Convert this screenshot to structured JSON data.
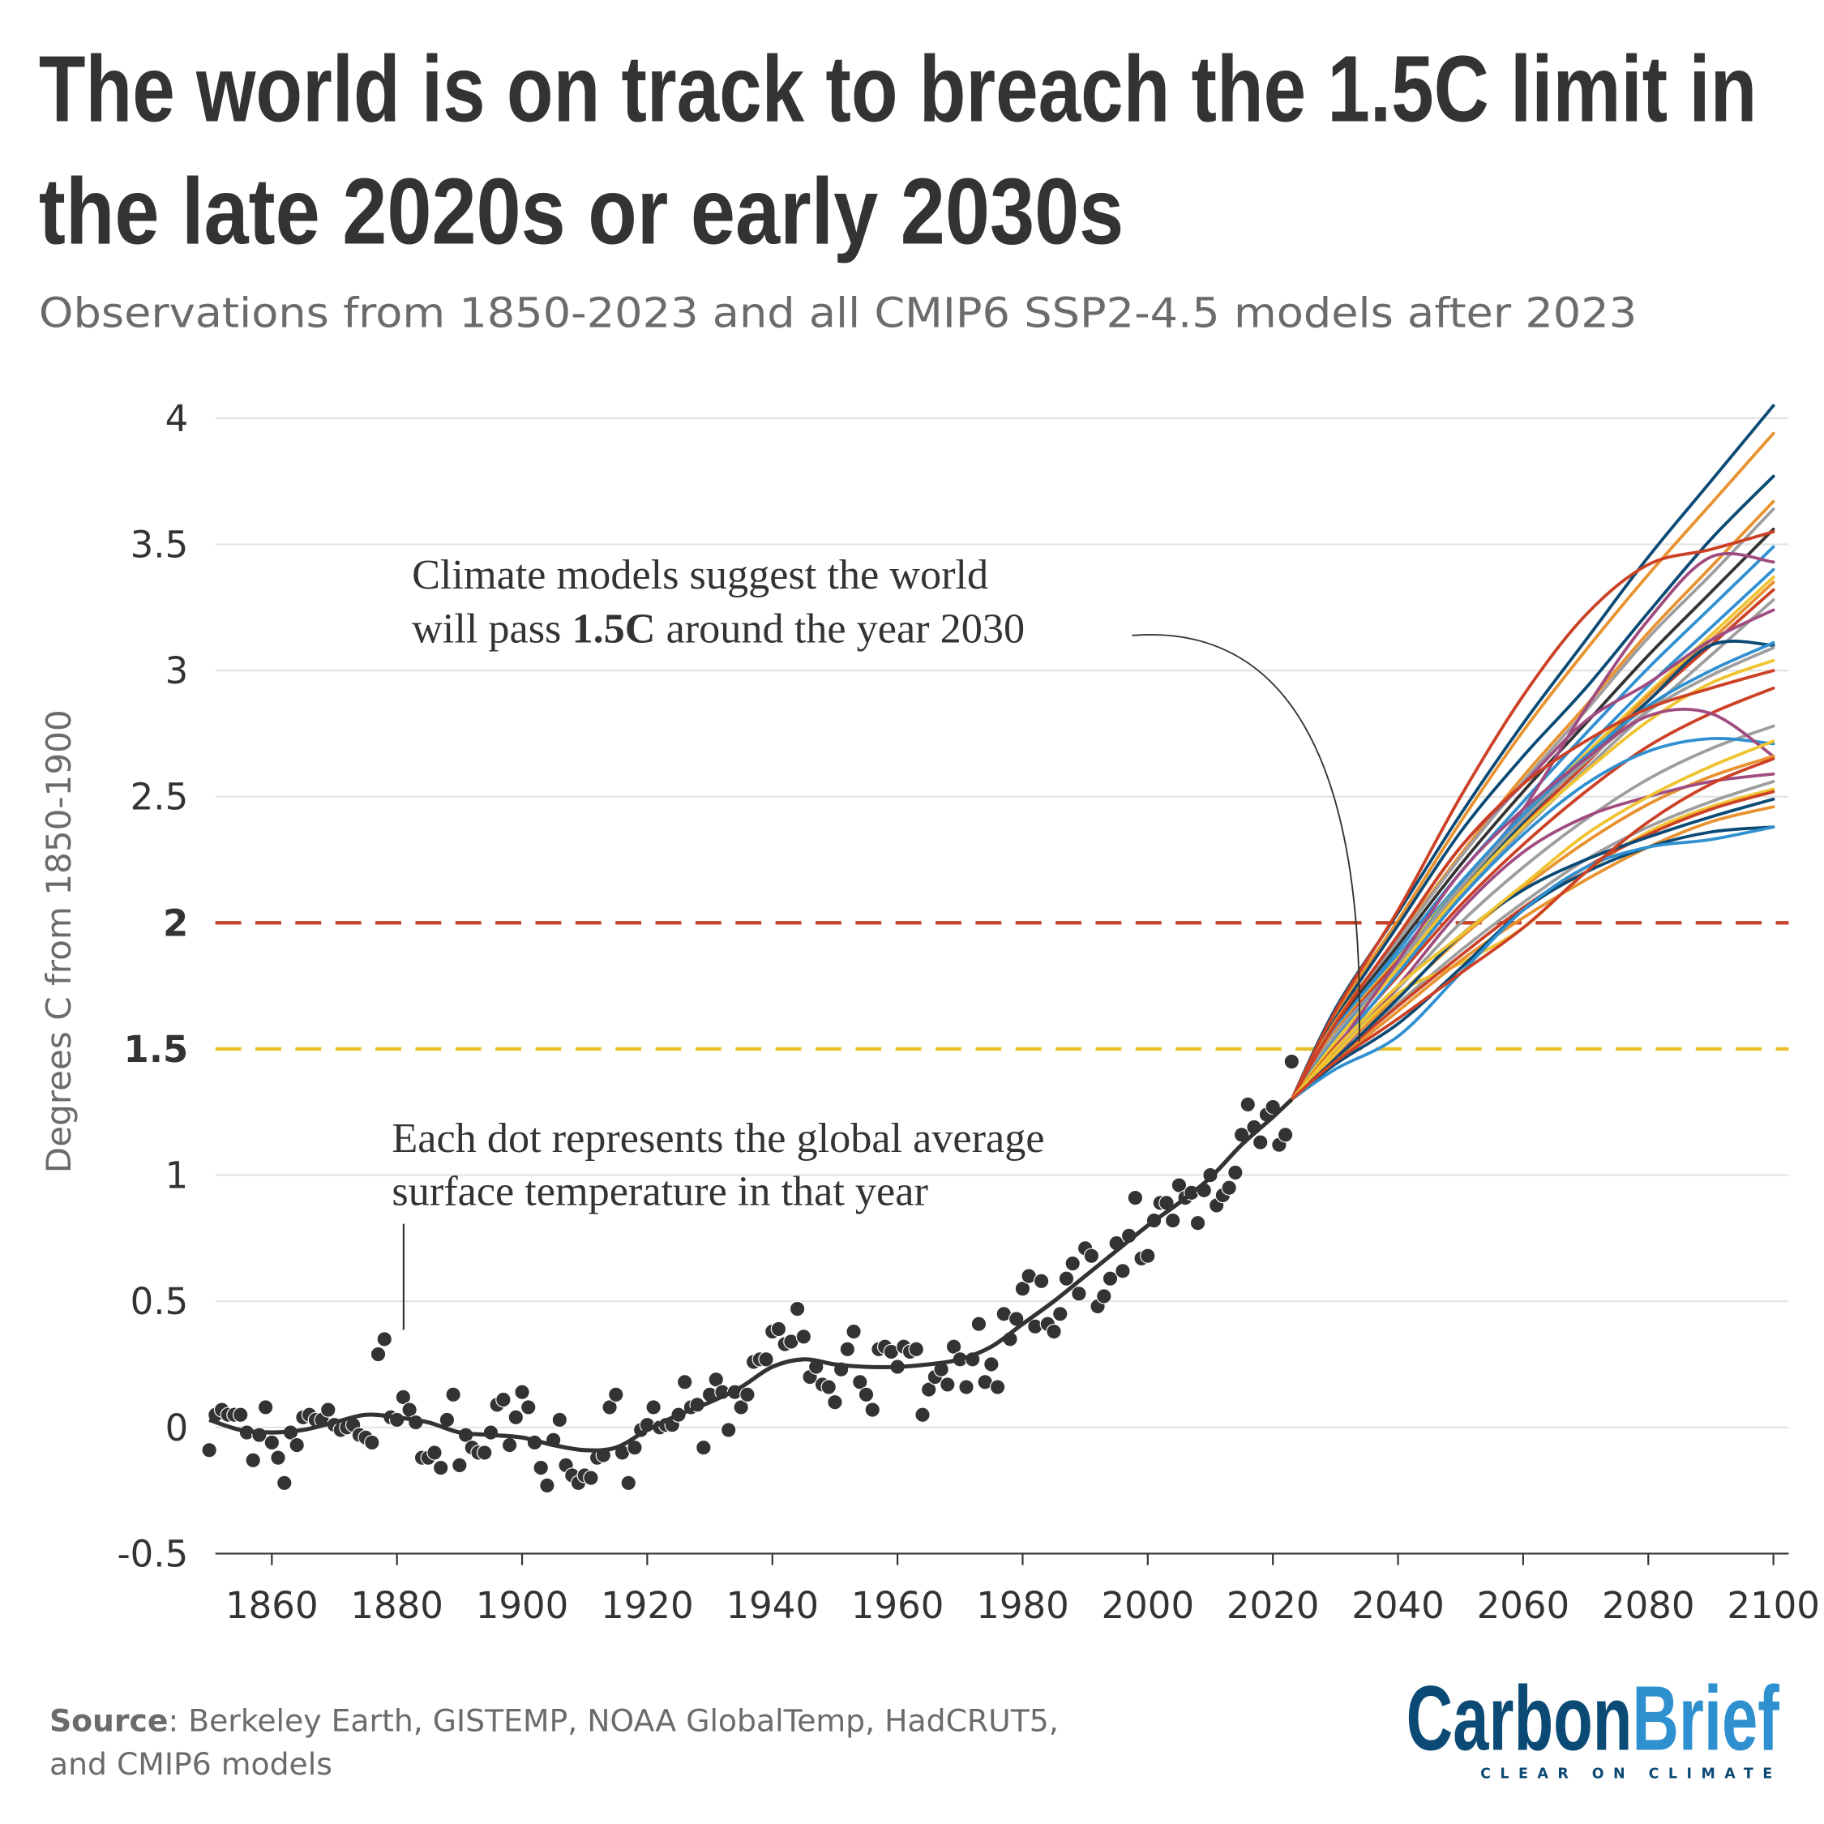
{
  "title": {
    "line1": "The world is on track to breach the 1.5C limit in",
    "line2": "the late 2020s or early 2030s"
  },
  "subtitle": "Observations from 1850-2023 and all CMIP6 SSP2-4.5 models after 2023",
  "annotations": {
    "models_line1": "Climate models suggest the world",
    "models_line2_pre": "will pass ",
    "models_line2_bold": "1.5C",
    "models_line2_post": " around the year 2030",
    "dots_line1": "Each dot represents the global average",
    "dots_line2": "surface temperature in that year"
  },
  "source": {
    "label": "Source",
    "text1": ": Berkeley Earth, GISTEMP, NOAA GlobalTemp, HadCRUT5,",
    "text2": "and CMIP6 models"
  },
  "logo": {
    "carbon": "Carbon",
    "brief": "Brief",
    "tagline": "CLEAR ON CLIMATE"
  },
  "colors": {
    "text": "#333333",
    "muted": "#6b6b6b",
    "limit_2c": "#c8432a",
    "limit_1_5c": "#e9c02b",
    "logo_dark": "#0b4a75",
    "logo_light": "#2f90d0"
  },
  "chart_data": {
    "type": "line",
    "title": "The world is on track to breach the 1.5C limit in the late 2020s or early 2030s",
    "ylabel": "Degrees C from 1850-1900",
    "xlabel": "",
    "xlim": [
      1850,
      2100
    ],
    "ylim": [
      -0.5,
      4
    ],
    "grid": true,
    "x_ticks": [
      1860,
      1880,
      1900,
      1920,
      1940,
      1960,
      1980,
      2000,
      2020,
      2040,
      2060,
      2080,
      2100
    ],
    "y_ticks": [
      {
        "value": 4,
        "label": "4",
        "bold": false
      },
      {
        "value": 3.5,
        "label": "3.5",
        "bold": false
      },
      {
        "value": 3,
        "label": "3",
        "bold": false
      },
      {
        "value": 2.5,
        "label": "2.5",
        "bold": false
      },
      {
        "value": 2,
        "label": "2",
        "bold": true
      },
      {
        "value": 1.5,
        "label": "1.5",
        "bold": true
      },
      {
        "value": 1,
        "label": "1",
        "bold": false
      },
      {
        "value": 0.5,
        "label": "0.5",
        "bold": false
      },
      {
        "value": 0,
        "label": "0",
        "bold": false
      },
      {
        "value": -0.5,
        "label": "-0.5",
        "bold": false
      }
    ],
    "reference_lines": [
      {
        "value": 2,
        "color": "#c8432a",
        "style": "dashed"
      },
      {
        "value": 1.5,
        "color": "#e9c02b",
        "style": "dashed"
      }
    ],
    "observations": {
      "type": "scatter",
      "color": "#333333",
      "x": [
        1850,
        1851,
        1852,
        1853,
        1854,
        1855,
        1856,
        1857,
        1858,
        1859,
        1860,
        1861,
        1862,
        1863,
        1864,
        1865,
        1866,
        1867,
        1868,
        1869,
        1870,
        1871,
        1872,
        1873,
        1874,
        1875,
        1876,
        1877,
        1878,
        1879,
        1880,
        1881,
        1882,
        1883,
        1884,
        1885,
        1886,
        1887,
        1888,
        1889,
        1890,
        1891,
        1892,
        1893,
        1894,
        1895,
        1896,
        1897,
        1898,
        1899,
        1900,
        1901,
        1902,
        1903,
        1904,
        1905,
        1906,
        1907,
        1908,
        1909,
        1910,
        1911,
        1912,
        1913,
        1914,
        1915,
        1916,
        1917,
        1918,
        1919,
        1920,
        1921,
        1922,
        1923,
        1924,
        1925,
        1926,
        1927,
        1928,
        1929,
        1930,
        1931,
        1932,
        1933,
        1934,
        1935,
        1936,
        1937,
        1938,
        1939,
        1940,
        1941,
        1942,
        1943,
        1944,
        1945,
        1946,
        1947,
        1948,
        1949,
        1950,
        1951,
        1952,
        1953,
        1954,
        1955,
        1956,
        1957,
        1958,
        1959,
        1960,
        1961,
        1962,
        1963,
        1964,
        1965,
        1966,
        1967,
        1968,
        1969,
        1970,
        1971,
        1972,
        1973,
        1974,
        1975,
        1976,
        1977,
        1978,
        1979,
        1980,
        1981,
        1982,
        1983,
        1984,
        1985,
        1986,
        1987,
        1988,
        1989,
        1990,
        1991,
        1992,
        1993,
        1994,
        1995,
        1996,
        1997,
        1998,
        1999,
        2000,
        2001,
        2002,
        2003,
        2004,
        2005,
        2006,
        2007,
        2008,
        2009,
        2010,
        2011,
        2012,
        2013,
        2014,
        2015,
        2016,
        2017,
        2018,
        2019,
        2020,
        2021,
        2022,
        2023
      ],
      "y": [
        -0.09,
        0.05,
        0.07,
        0.05,
        0.05,
        0.05,
        -0.02,
        -0.13,
        -0.03,
        0.08,
        -0.06,
        -0.12,
        -0.22,
        -0.02,
        -0.07,
        0.04,
        0.05,
        0.03,
        0.03,
        0.07,
        0.01,
        -0.01,
        0.0,
        0.01,
        -0.03,
        -0.04,
        -0.06,
        0.29,
        0.35,
        0.04,
        0.03,
        0.12,
        0.07,
        0.02,
        -0.12,
        -0.12,
        -0.1,
        -0.16,
        0.03,
        0.13,
        -0.15,
        -0.03,
        -0.08,
        -0.1,
        -0.1,
        -0.02,
        0.09,
        0.11,
        -0.07,
        0.04,
        0.14,
        0.08,
        -0.06,
        -0.16,
        -0.23,
        -0.05,
        0.03,
        -0.15,
        -0.19,
        -0.22,
        -0.19,
        -0.2,
        -0.12,
        -0.11,
        0.08,
        0.13,
        -0.1,
        -0.22,
        -0.08,
        -0.01,
        0.01,
        0.08,
        0.0,
        0.01,
        0.01,
        0.05,
        0.18,
        0.08,
        0.09,
        -0.08,
        0.13,
        0.19,
        0.14,
        -0.01,
        0.14,
        0.08,
        0.13,
        0.26,
        0.27,
        0.27,
        0.38,
        0.39,
        0.33,
        0.34,
        0.47,
        0.36,
        0.2,
        0.24,
        0.17,
        0.16,
        0.1,
        0.23,
        0.31,
        0.38,
        0.18,
        0.13,
        0.07,
        0.31,
        0.32,
        0.3,
        0.24,
        0.32,
        0.3,
        0.31,
        0.05,
        0.15,
        0.2,
        0.23,
        0.17,
        0.32,
        0.27,
        0.16,
        0.27,
        0.41,
        0.18,
        0.25,
        0.16,
        0.45,
        0.35,
        0.43,
        0.55,
        0.6,
        0.4,
        0.58,
        0.41,
        0.38,
        0.45,
        0.59,
        0.65,
        0.53,
        0.71,
        0.68,
        0.48,
        0.52,
        0.59,
        0.73,
        0.62,
        0.76,
        0.91,
        0.67,
        0.68,
        0.82,
        0.89,
        0.89,
        0.82,
        0.96,
        0.91,
        0.93,
        0.81,
        0.94,
        1.0,
        0.88,
        0.92,
        0.95,
        1.01,
        1.16,
        1.28,
        1.19,
        1.13,
        1.24,
        1.27,
        1.12,
        1.16,
        1.45
      ]
    },
    "smoothed": {
      "color": "#333333",
      "x": [
        1850,
        1855,
        1860,
        1865,
        1870,
        1875,
        1880,
        1885,
        1890,
        1895,
        1900,
        1905,
        1910,
        1915,
        1920,
        1925,
        1930,
        1935,
        1940,
        1945,
        1950,
        1955,
        1960,
        1965,
        1970,
        1975,
        1980,
        1985,
        1990,
        1995,
        2000,
        2005,
        2010,
        2015,
        2020,
        2023
      ],
      "y": [
        0.03,
        -0.01,
        -0.02,
        -0.01,
        0.02,
        0.05,
        0.04,
        0.02,
        -0.02,
        -0.03,
        -0.04,
        -0.07,
        -0.09,
        -0.08,
        -0.01,
        0.05,
        0.1,
        0.16,
        0.24,
        0.27,
        0.25,
        0.24,
        0.24,
        0.25,
        0.27,
        0.32,
        0.41,
        0.5,
        0.6,
        0.7,
        0.8,
        0.89,
        0.99,
        1.12,
        1.23,
        1.3
      ]
    },
    "models_x": [
      2023,
      2030,
      2040,
      2050,
      2060,
      2070,
      2080,
      2090,
      2100
    ],
    "models": [
      {
        "color": "#0b4a75",
        "values": [
          1.3,
          1.66,
          2.04,
          2.43,
          2.79,
          3.12,
          3.45,
          3.75,
          4.05
        ]
      },
      {
        "color": "#e8922f",
        "values": [
          1.3,
          1.64,
          2.01,
          2.4,
          2.76,
          3.08,
          3.38,
          3.66,
          3.94
        ]
      },
      {
        "color": "#0b4a75",
        "values": [
          1.3,
          1.62,
          1.99,
          2.36,
          2.66,
          2.93,
          3.23,
          3.52,
          3.77
        ]
      },
      {
        "color": "#e8922f",
        "values": [
          1.3,
          1.61,
          1.94,
          2.27,
          2.58,
          2.86,
          3.15,
          3.41,
          3.67
        ]
      },
      {
        "color": "#9e9e9e",
        "values": [
          1.3,
          1.6,
          1.93,
          2.26,
          2.56,
          2.84,
          3.13,
          3.38,
          3.64
        ]
      },
      {
        "color": "#333333",
        "values": [
          1.3,
          1.59,
          1.91,
          2.23,
          2.52,
          2.79,
          3.06,
          3.31,
          3.56
        ]
      },
      {
        "color": "#cc4125",
        "values": [
          1.3,
          1.65,
          2.05,
          2.5,
          2.9,
          3.22,
          3.42,
          3.48,
          3.55
        ]
      },
      {
        "color": "#3090d0",
        "values": [
          1.3,
          1.58,
          1.89,
          2.2,
          2.48,
          2.75,
          3.01,
          3.25,
          3.49
        ]
      },
      {
        "color": "#a04c80",
        "values": [
          1.3,
          1.57,
          1.85,
          2.15,
          2.45,
          2.85,
          3.2,
          3.45,
          3.43
        ]
      },
      {
        "color": "#3090d0",
        "values": [
          1.3,
          1.57,
          1.87,
          2.16,
          2.43,
          2.69,
          2.94,
          3.17,
          3.4
        ]
      },
      {
        "color": "#f0c330",
        "values": [
          1.3,
          1.57,
          1.86,
          2.15,
          2.42,
          2.67,
          2.91,
          3.14,
          3.37
        ]
      },
      {
        "color": "#e8922f",
        "values": [
          1.3,
          1.57,
          1.85,
          2.14,
          2.41,
          2.65,
          2.9,
          3.12,
          3.35
        ]
      },
      {
        "color": "#cc4125",
        "values": [
          1.3,
          1.56,
          1.85,
          2.13,
          2.39,
          2.63,
          2.88,
          3.1,
          3.32
        ]
      },
      {
        "color": "#9e9e9e",
        "values": [
          1.3,
          1.56,
          1.83,
          2.11,
          2.37,
          2.61,
          2.84,
          3.06,
          3.28
        ]
      },
      {
        "color": "#a04c80",
        "values": [
          1.3,
          1.6,
          1.95,
          2.3,
          2.55,
          2.8,
          2.95,
          3.12,
          3.24
        ]
      },
      {
        "color": "#0b4a75",
        "values": [
          1.3,
          1.53,
          1.82,
          2.12,
          2.4,
          2.65,
          2.88,
          3.1,
          3.1
        ]
      },
      {
        "color": "#3090d0",
        "values": [
          1.3,
          1.54,
          1.84,
          2.15,
          2.42,
          2.66,
          2.86,
          3.0,
          3.11
        ]
      },
      {
        "color": "#9e9e9e",
        "values": [
          1.3,
          1.53,
          1.84,
          2.14,
          2.41,
          2.64,
          2.84,
          2.98,
          3.09
        ]
      },
      {
        "color": "#f0c330",
        "values": [
          1.3,
          1.53,
          1.82,
          2.12,
          2.38,
          2.6,
          2.8,
          2.95,
          3.04
        ]
      },
      {
        "color": "#cc4125",
        "values": [
          1.3,
          1.6,
          1.95,
          2.3,
          2.55,
          2.72,
          2.85,
          2.93,
          3.0
        ]
      },
      {
        "color": "#cc4125",
        "values": [
          1.3,
          1.51,
          1.79,
          2.07,
          2.31,
          2.52,
          2.7,
          2.83,
          2.93
        ]
      },
      {
        "color": "#9e9e9e",
        "values": [
          1.3,
          1.49,
          1.74,
          2.0,
          2.22,
          2.41,
          2.57,
          2.69,
          2.78
        ]
      },
      {
        "color": "#3090d0",
        "values": [
          1.3,
          1.5,
          1.8,
          2.1,
          2.35,
          2.55,
          2.68,
          2.73,
          2.71
        ]
      },
      {
        "color": "#a04c80",
        "values": [
          1.3,
          1.5,
          1.85,
          2.2,
          2.45,
          2.65,
          2.82,
          2.83,
          2.66
        ]
      },
      {
        "color": "#e8922f",
        "values": [
          1.3,
          1.48,
          1.71,
          1.94,
          2.14,
          2.32,
          2.47,
          2.58,
          2.66
        ]
      },
      {
        "color": "#a04c80",
        "values": [
          1.3,
          1.47,
          1.75,
          2.05,
          2.28,
          2.42,
          2.5,
          2.56,
          2.59
        ]
      },
      {
        "color": "#9e9e9e",
        "values": [
          1.3,
          1.46,
          1.68,
          1.89,
          2.08,
          2.25,
          2.38,
          2.48,
          2.56
        ]
      },
      {
        "color": "#f0c330",
        "values": [
          1.3,
          1.48,
          1.72,
          1.84,
          1.98,
          2.2,
          2.36,
          2.46,
          2.53
        ]
      },
      {
        "color": "#cc4125",
        "values": [
          1.3,
          1.46,
          1.67,
          1.87,
          2.06,
          2.22,
          2.35,
          2.45,
          2.52
        ]
      },
      {
        "color": "#0b4a75",
        "values": [
          1.3,
          1.46,
          1.7,
          1.95,
          2.13,
          2.25,
          2.34,
          2.42,
          2.49
        ]
      },
      {
        "color": "#e8922f",
        "values": [
          1.3,
          1.45,
          1.65,
          1.85,
          2.02,
          2.17,
          2.3,
          2.4,
          2.46
        ]
      },
      {
        "color": "#0b4a75",
        "values": [
          1.3,
          1.44,
          1.6,
          1.82,
          2.05,
          2.2,
          2.3,
          2.36,
          2.38
        ]
      },
      {
        "color": "#3090d0",
        "values": [
          1.3,
          1.42,
          1.55,
          1.8,
          2.05,
          2.22,
          2.3,
          2.33,
          2.38
        ]
      },
      {
        "color": "#f0c330",
        "values": [
          1.3,
          1.5,
          1.75,
          1.95,
          2.15,
          2.35,
          2.5,
          2.62,
          2.72
        ]
      },
      {
        "color": "#cc4125",
        "values": [
          1.3,
          1.45,
          1.62,
          1.8,
          1.98,
          2.2,
          2.4,
          2.55,
          2.65
        ]
      }
    ]
  }
}
